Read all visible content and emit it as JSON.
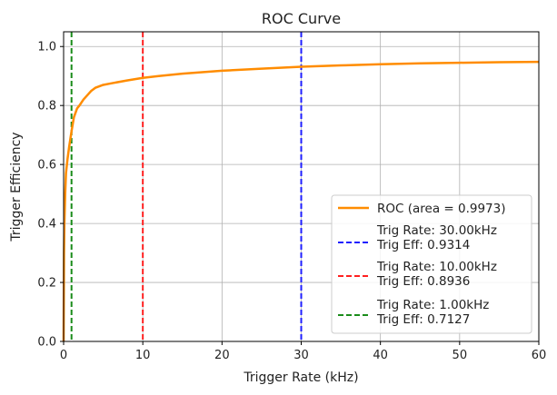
{
  "chart_data": {
    "type": "line",
    "title": "ROC Curve",
    "xlabel": "Trigger Rate (kHz)",
    "ylabel": "Trigger Efficiency",
    "xlim": [
      0,
      60
    ],
    "ylim": [
      0,
      1.05
    ],
    "xticks": [
      0,
      10,
      20,
      30,
      40,
      50,
      60
    ],
    "yticks": [
      0.0,
      0.2,
      0.4,
      0.6,
      0.8,
      1.0
    ],
    "xtick_labels": [
      "0",
      "10",
      "20",
      "30",
      "40",
      "50",
      "60"
    ],
    "ytick_labels": [
      "0.0",
      "0.2",
      "0.4",
      "0.6",
      "0.8",
      "1.0"
    ],
    "grid": true,
    "legend_position": "lower-right",
    "series": [
      {
        "name": "ROC (area = 0.9973)",
        "color": "#ff8c00",
        "style": "solid",
        "x": [
          0,
          0.05,
          0.1,
          0.2,
          0.3,
          0.5,
          0.7,
          1.0,
          1.3,
          1.7,
          2.0,
          2.5,
          3.0,
          3.5,
          4.0,
          5.0,
          6.0,
          8.0,
          10.0,
          12.0,
          15.0,
          20.0,
          25.0,
          30.0,
          35.0,
          40.0,
          45.0,
          50.0,
          55.0,
          60.0
        ],
        "y": [
          0.0,
          0.3,
          0.4,
          0.5,
          0.57,
          0.62,
          0.66,
          0.7127,
          0.76,
          0.79,
          0.8,
          0.82,
          0.835,
          0.85,
          0.86,
          0.87,
          0.875,
          0.885,
          0.8936,
          0.9,
          0.908,
          0.918,
          0.925,
          0.9314,
          0.936,
          0.94,
          0.943,
          0.945,
          0.947,
          0.948
        ]
      }
    ],
    "vlines": [
      {
        "x": 30,
        "color": "#1f1fff",
        "label_line1": "Trig Rate: 30.00kHz",
        "label_line2": "Trig Eff: 0.9314"
      },
      {
        "x": 10,
        "color": "#ff2020",
        "label_line1": "Trig Rate: 10.00kHz",
        "label_line2": "Trig Eff: 0.8936"
      },
      {
        "x": 1,
        "color": "#1a8c1a",
        "label_line1": "Trig Rate: 1.00kHz",
        "label_line2": "Trig Eff: 0.7127"
      }
    ]
  }
}
